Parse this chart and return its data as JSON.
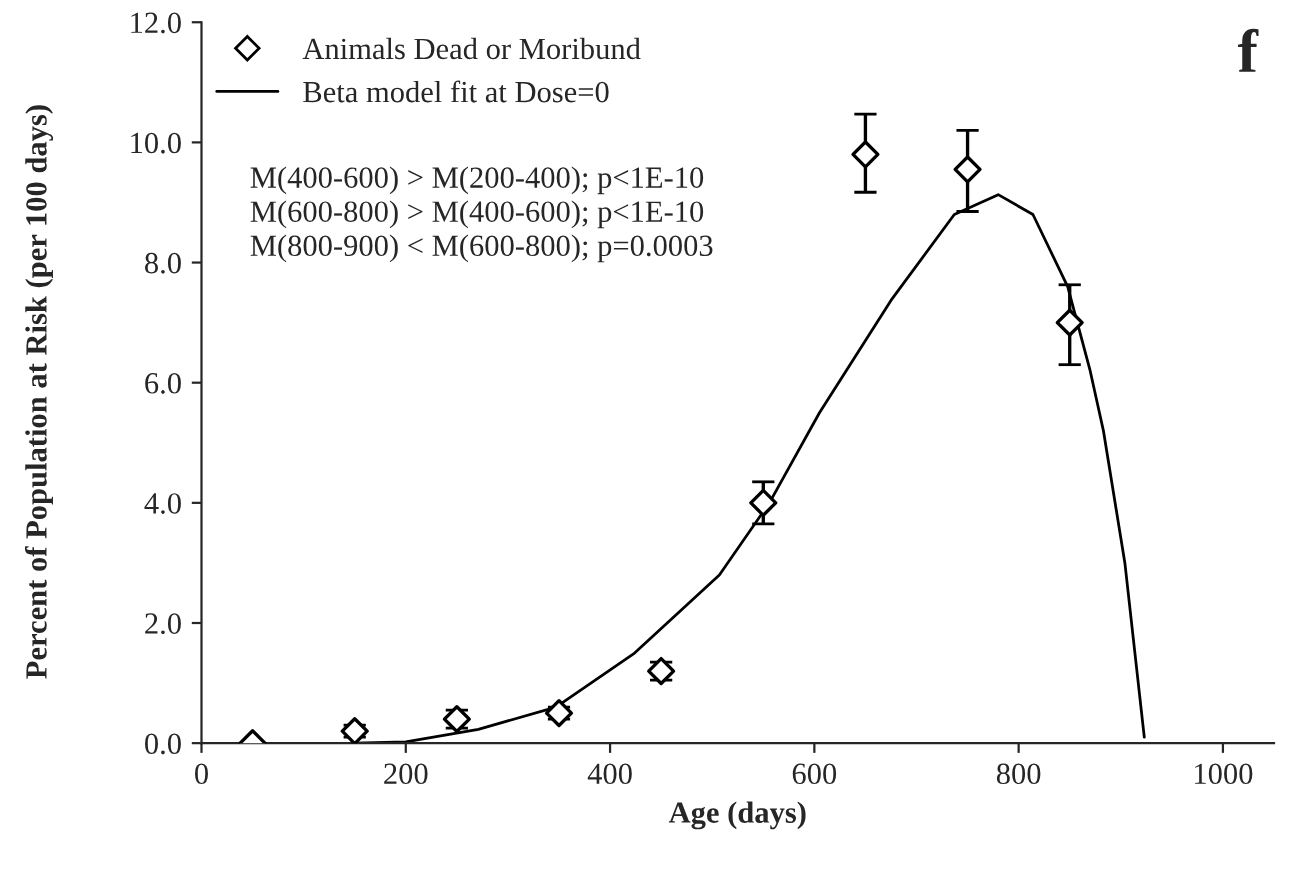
{
  "chart_data": {
    "type": "scatter",
    "xlabel": "Age (days)",
    "ylabel": "Percent of Population at Risk (per 100 days)",
    "xlim": [
      0,
      1050
    ],
    "xticks": [
      0,
      200,
      400,
      600,
      800,
      1000
    ],
    "ylim": [
      0,
      12
    ],
    "yticks": [
      {
        "value": 0,
        "label": "0.0"
      },
      {
        "value": 2,
        "label": "2.0"
      },
      {
        "value": 4,
        "label": "4.0"
      },
      {
        "value": 6,
        "label": "6.0"
      },
      {
        "value": 8,
        "label": "8.0"
      },
      {
        "value": 10,
        "label": "10.0"
      },
      {
        "value": 12,
        "label": "12.0"
      }
    ],
    "grid": false,
    "legend": "top left",
    "series": [
      {
        "name": "Animals Dead or Moribund",
        "color": "#000000",
        "marker": "diamond",
        "x": [
          50,
          150,
          250,
          350,
          450,
          550,
          650,
          750,
          850
        ],
        "values": [
          0.0,
          0.2,
          0.4,
          0.5,
          1.2,
          4.0,
          9.8,
          9.55,
          7.0
        ],
        "errors": [
          null,
          0.1,
          0.15,
          0.1,
          0.15,
          0.35,
          [
            9.17,
            10.47
          ],
          [
            8.85,
            10.2
          ],
          [
            6.3,
            7.63
          ]
        ]
      },
      {
        "name": "Beta model fit at Dose=0",
        "type": "line",
        "color": "#000000",
        "marker": "none",
        "line_style": "solid",
        "x": [
          150,
          200,
          271,
          347,
          424,
          507,
          556,
          605,
          675,
          737,
          780,
          814,
          848,
          870,
          883,
          904,
          923
        ],
        "values": [
          0.0,
          0.02,
          0.23,
          0.6,
          1.5,
          2.8,
          4.0,
          5.5,
          7.37,
          8.8,
          9.13,
          8.8,
          7.6,
          6.2,
          5.2,
          3.0,
          0.1
        ]
      }
    ],
    "annotations": [
      "f",
      "M(400-600) > M(200-400); p<1E-10\nM(600-800) > M(400-600); p<1E-10\nM(800-900) < M(600-800); p=0.0003"
    ]
  }
}
